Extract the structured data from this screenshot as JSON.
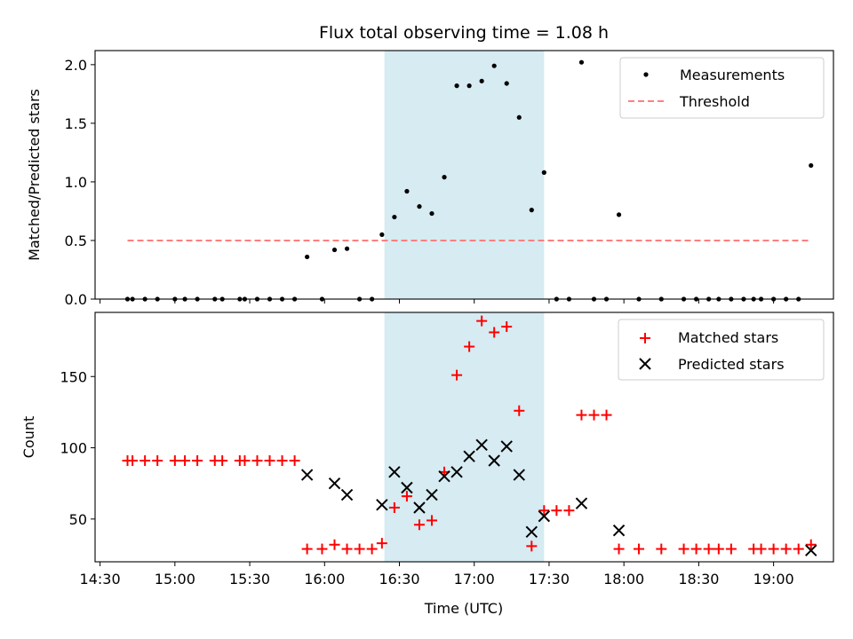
{
  "chart_data": [
    {
      "type": "scatter",
      "title": "Flux total observing time = 1.08 h",
      "ylabel": "Matched/Predicted stars",
      "xlabel": "",
      "xlim": [
        "14:28",
        "19:24"
      ],
      "ylim": [
        0,
        2.12
      ],
      "yticks": [
        "0.0",
        "0.5",
        "1.0",
        "1.5",
        "2.0"
      ],
      "shaded_interval": [
        "16:24",
        "17:28"
      ],
      "shade_color": "#add8e6",
      "legend": "top-right",
      "series": [
        {
          "name": "Measurements",
          "marker": "dot",
          "color": "#000000",
          "points": [
            [
              "14:41",
              0
            ],
            [
              "14:43",
              0
            ],
            [
              "14:48",
              0
            ],
            [
              "14:53",
              0
            ],
            [
              "15:00",
              0
            ],
            [
              "15:04",
              0
            ],
            [
              "15:09",
              0
            ],
            [
              "15:16",
              0
            ],
            [
              "15:19",
              0
            ],
            [
              "15:26",
              0
            ],
            [
              "15:28",
              0
            ],
            [
              "15:33",
              0
            ],
            [
              "15:38",
              0
            ],
            [
              "15:43",
              0
            ],
            [
              "15:48",
              0
            ],
            [
              "15:53",
              0.36
            ],
            [
              "15:59",
              0
            ],
            [
              "16:04",
              0.42
            ],
            [
              "16:09",
              0.43
            ],
            [
              "16:14",
              0
            ],
            [
              "16:19",
              0
            ],
            [
              "16:23",
              0.55
            ],
            [
              "16:28",
              0.7
            ],
            [
              "16:33",
              0.92
            ],
            [
              "16:38",
              0.79
            ],
            [
              "16:43",
              0.73
            ],
            [
              "16:48",
              1.04
            ],
            [
              "16:53",
              1.82
            ],
            [
              "16:58",
              1.82
            ],
            [
              "17:03",
              1.86
            ],
            [
              "17:08",
              1.99
            ],
            [
              "17:13",
              1.84
            ],
            [
              "17:18",
              1.55
            ],
            [
              "17:23",
              0.76
            ],
            [
              "17:28",
              1.08
            ],
            [
              "17:33",
              0
            ],
            [
              "17:38",
              0
            ],
            [
              "17:43",
              2.02
            ],
            [
              "17:48",
              0
            ],
            [
              "17:53",
              0
            ],
            [
              "17:58",
              0.72
            ],
            [
              "18:06",
              0
            ],
            [
              "18:15",
              0
            ],
            [
              "18:24",
              0
            ],
            [
              "18:29",
              0
            ],
            [
              "18:34",
              0
            ],
            [
              "18:38",
              0
            ],
            [
              "18:43",
              0
            ],
            [
              "18:48",
              0
            ],
            [
              "18:52",
              0
            ],
            [
              "18:55",
              0
            ],
            [
              "19:00",
              0
            ],
            [
              "19:05",
              0
            ],
            [
              "19:10",
              0
            ],
            [
              "19:15",
              1.14
            ]
          ]
        },
        {
          "name": "Threshold",
          "marker": "dashed-line",
          "color": "#ff7f7f",
          "points": [
            [
              "14:41",
              0.5
            ],
            [
              "19:15",
              0.5
            ]
          ]
        }
      ]
    },
    {
      "type": "scatter",
      "title": "",
      "ylabel": "Count",
      "xlabel": "Time (UTC)",
      "xlim": [
        "14:28",
        "19:24"
      ],
      "ylim": [
        20,
        195
      ],
      "yticks": [
        "50",
        "100",
        "150"
      ],
      "xticks": [
        "14:30",
        "15:00",
        "15:30",
        "16:00",
        "16:30",
        "17:00",
        "17:30",
        "18:00",
        "18:30",
        "19:00"
      ],
      "shaded_interval": [
        "16:24",
        "17:28"
      ],
      "shade_color": "#add8e6",
      "legend": "top-right",
      "series": [
        {
          "name": "Matched stars",
          "marker": "plus",
          "color": "#ff0000",
          "points": [
            [
              "14:41",
              91
            ],
            [
              "14:43",
              91
            ],
            [
              "14:48",
              91
            ],
            [
              "14:53",
              91
            ],
            [
              "15:00",
              91
            ],
            [
              "15:04",
              91
            ],
            [
              "15:09",
              91
            ],
            [
              "15:16",
              91
            ],
            [
              "15:19",
              91
            ],
            [
              "15:26",
              91
            ],
            [
              "15:28",
              91
            ],
            [
              "15:33",
              91
            ],
            [
              "15:38",
              91
            ],
            [
              "15:43",
              91
            ],
            [
              "15:48",
              91
            ],
            [
              "15:53",
              29
            ],
            [
              "15:59",
              29
            ],
            [
              "16:04",
              32
            ],
            [
              "16:09",
              29
            ],
            [
              "16:14",
              29
            ],
            [
              "16:19",
              29
            ],
            [
              "16:23",
              33
            ],
            [
              "16:28",
              58
            ],
            [
              "16:33",
              66
            ],
            [
              "16:38",
              46
            ],
            [
              "16:43",
              49
            ],
            [
              "16:48",
              83
            ],
            [
              "16:53",
              151
            ],
            [
              "16:58",
              171
            ],
            [
              "17:03",
              189
            ],
            [
              "17:08",
              181
            ],
            [
              "17:13",
              185
            ],
            [
              "17:18",
              126
            ],
            [
              "17:23",
              31
            ],
            [
              "17:28",
              56
            ],
            [
              "17:33",
              56
            ],
            [
              "17:38",
              56
            ],
            [
              "17:43",
              123
            ],
            [
              "17:48",
              123
            ],
            [
              "17:53",
              123
            ],
            [
              "17:58",
              29
            ],
            [
              "18:06",
              29
            ],
            [
              "18:15",
              29
            ],
            [
              "18:24",
              29
            ],
            [
              "18:29",
              29
            ],
            [
              "18:34",
              29
            ],
            [
              "18:38",
              29
            ],
            [
              "18:43",
              29
            ],
            [
              "18:52",
              29
            ],
            [
              "18:55",
              29
            ],
            [
              "19:00",
              29
            ],
            [
              "19:05",
              29
            ],
            [
              "19:10",
              29
            ],
            [
              "19:15",
              32
            ]
          ]
        },
        {
          "name": "Predicted stars",
          "marker": "x",
          "color": "#000000",
          "points": [
            [
              "15:53",
              81
            ],
            [
              "16:04",
              75
            ],
            [
              "16:09",
              67
            ],
            [
              "16:23",
              60
            ],
            [
              "16:28",
              83
            ],
            [
              "16:33",
              72
            ],
            [
              "16:38",
              58
            ],
            [
              "16:43",
              67
            ],
            [
              "16:48",
              80
            ],
            [
              "16:53",
              83
            ],
            [
              "16:58",
              94
            ],
            [
              "17:03",
              102
            ],
            [
              "17:08",
              91
            ],
            [
              "17:13",
              101
            ],
            [
              "17:18",
              81
            ],
            [
              "17:23",
              41
            ],
            [
              "17:28",
              52
            ],
            [
              "17:43",
              61
            ],
            [
              "17:58",
              42
            ],
            [
              "19:15",
              28
            ]
          ]
        }
      ]
    }
  ]
}
